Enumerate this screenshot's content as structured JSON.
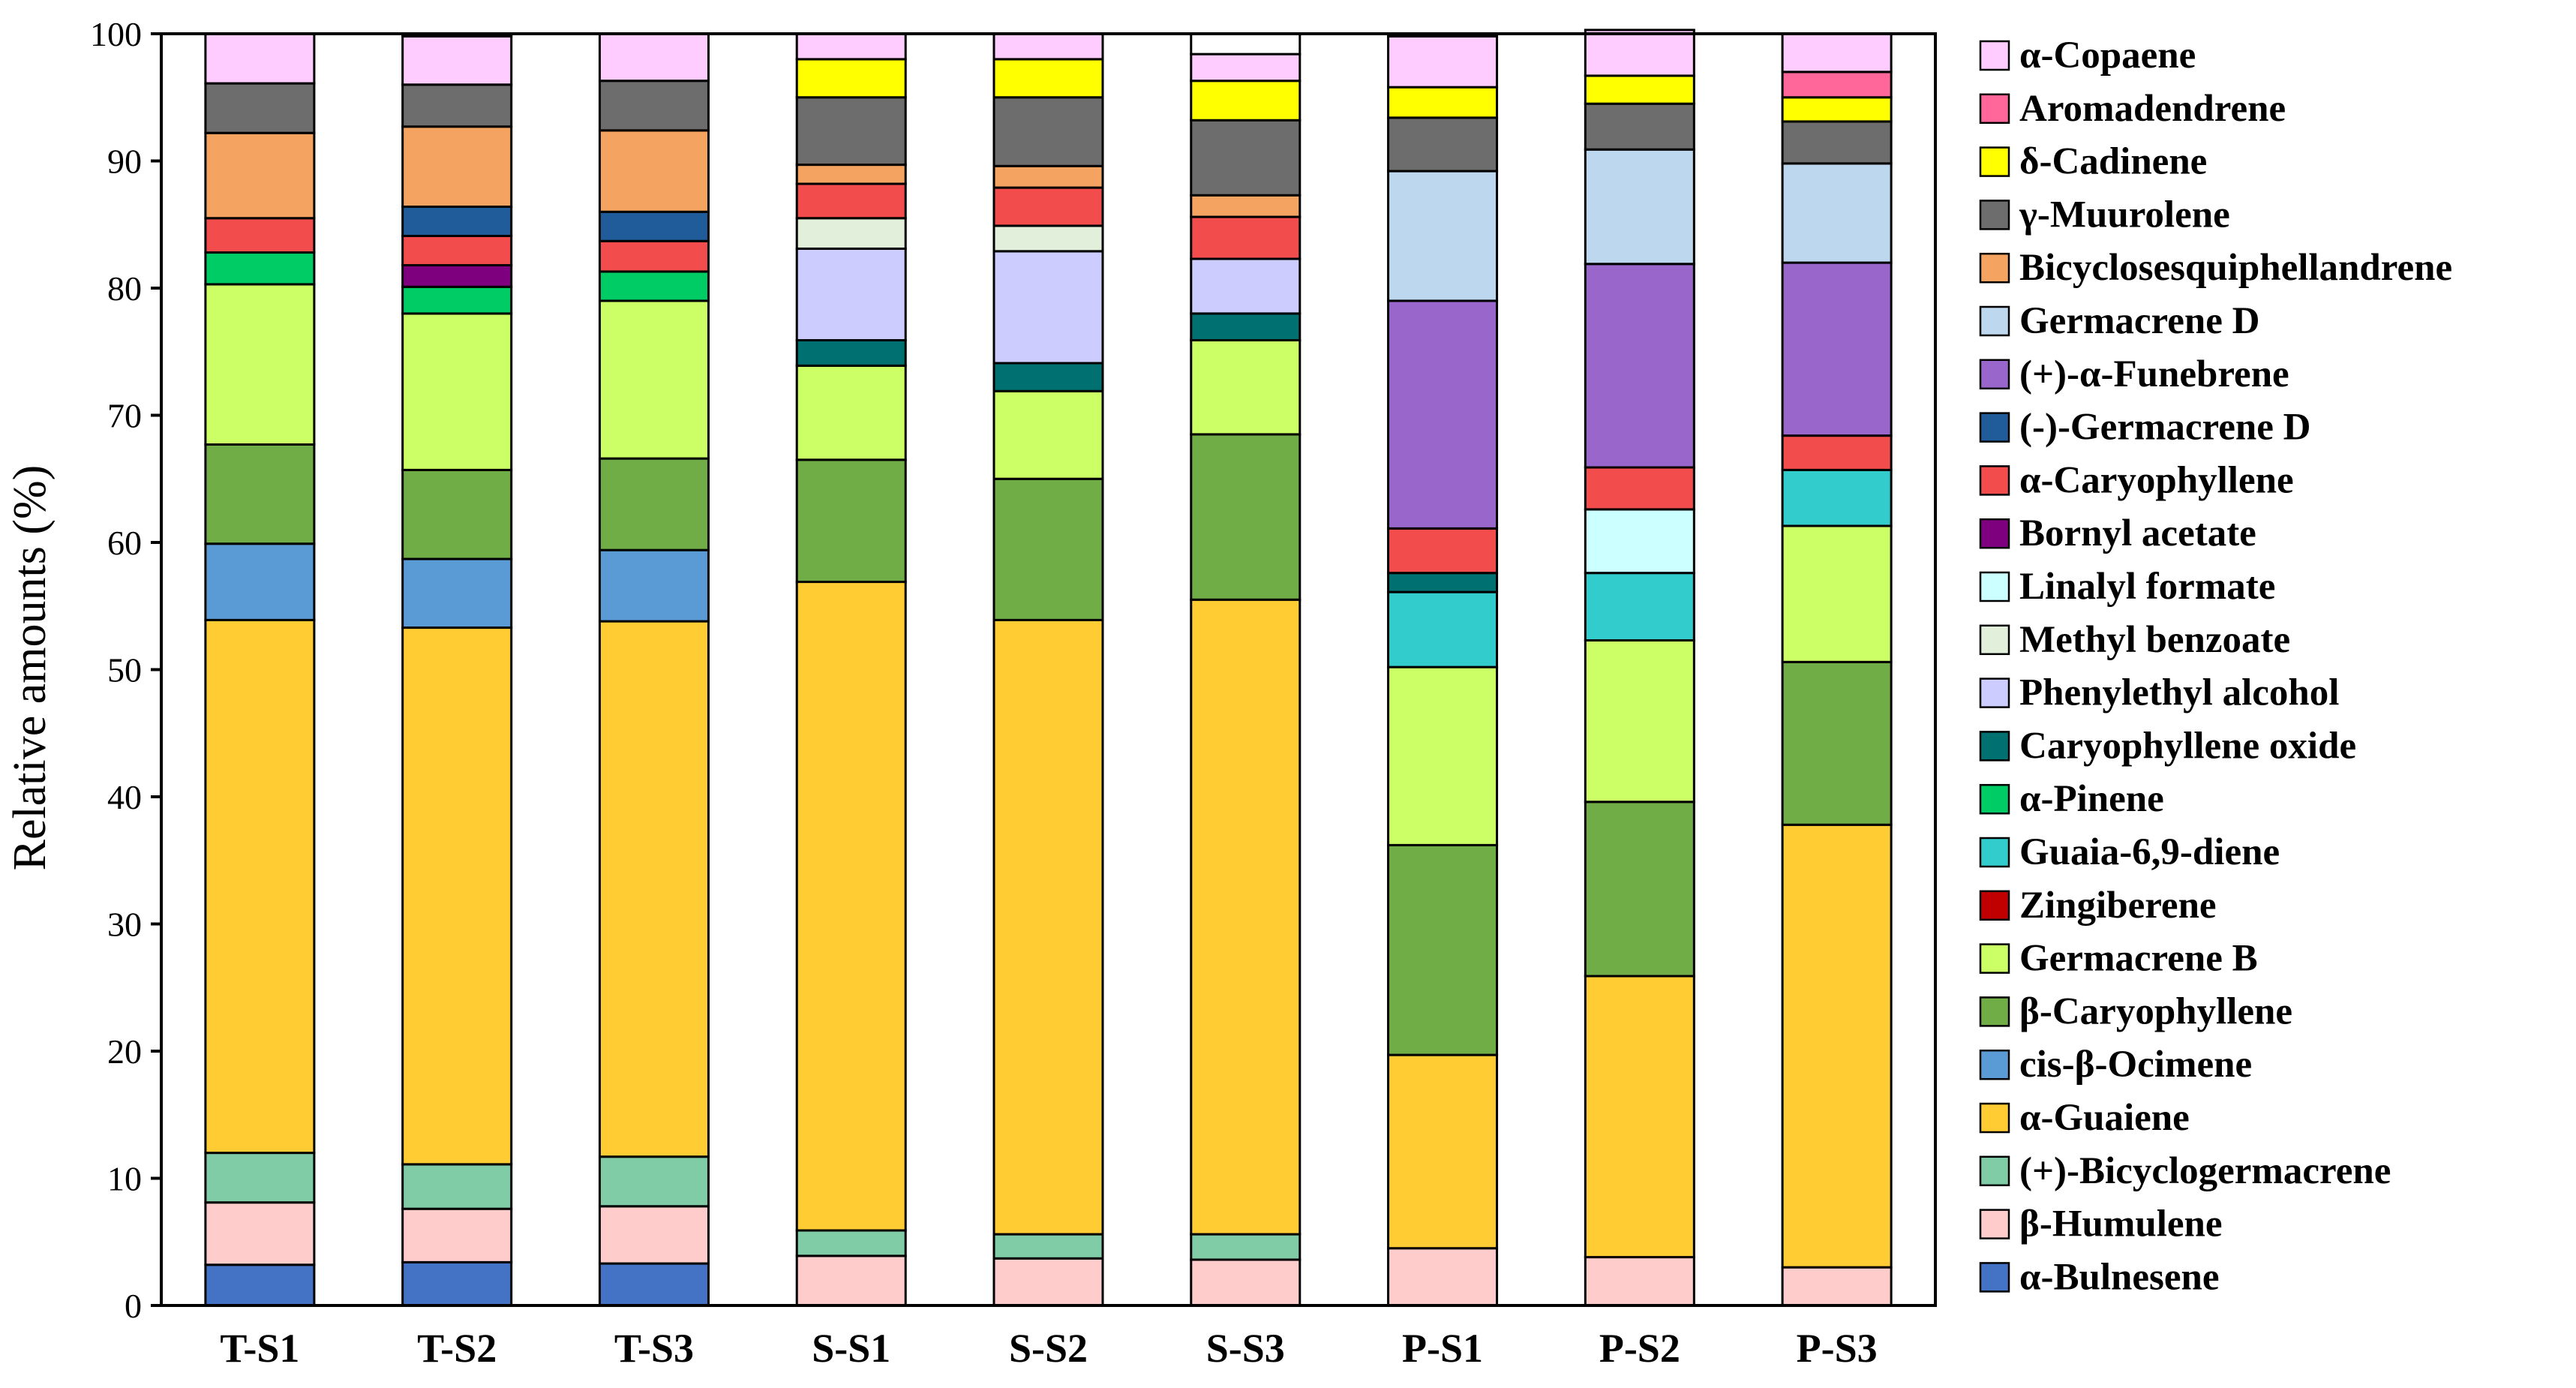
{
  "chart_data": {
    "type": "bar",
    "stacked": true,
    "title": "",
    "xlabel": "",
    "ylabel": "Relative amounts (%)",
    "ylim": [
      0,
      100
    ],
    "yticks": [
      0,
      10,
      20,
      30,
      40,
      50,
      60,
      70,
      80,
      90,
      100
    ],
    "categories": [
      "T-S1",
      "T-S2",
      "T-S3",
      "S-S1",
      "S-S2",
      "S-S3",
      "P-S1",
      "P-S2",
      "P-S3"
    ],
    "legend_position": "right",
    "series": [
      {
        "name": "α-Bulnesene",
        "color": "#4472C4",
        "values": [
          3.2,
          3.4,
          3.3,
          0,
          0,
          0,
          0,
          0,
          0
        ]
      },
      {
        "name": "β-Humulene",
        "color": "#FFCCCC",
        "values": [
          4.9,
          4.2,
          4.5,
          3.9,
          3.7,
          3.6,
          4.5,
          3.8,
          3.0
        ]
      },
      {
        "name": "(+)-Bicyclogermacrene",
        "color": "#7FCCA6",
        "values": [
          3.9,
          3.5,
          3.9,
          2.0,
          1.9,
          2.0,
          0,
          0,
          0
        ]
      },
      {
        "name": "α-Guaiene",
        "color": "#FFCC33",
        "values": [
          41.9,
          42.2,
          42.1,
          51.0,
          48.3,
          49.9,
          15.2,
          22.1,
          34.8
        ]
      },
      {
        "name": "cis-β-Ocimene",
        "color": "#5B9BD5",
        "values": [
          6.0,
          5.4,
          5.6,
          0,
          0,
          0,
          0,
          0,
          0
        ]
      },
      {
        "name": "β-Caryophyllene",
        "color": "#70AD47",
        "values": [
          7.8,
          7.0,
          7.2,
          9.6,
          11.1,
          13.0,
          16.5,
          13.7,
          12.8
        ]
      },
      {
        "name": "Germacrene B",
        "color": "#CCFF66",
        "values": [
          12.6,
          12.3,
          12.4,
          7.4,
          6.9,
          7.4,
          14.0,
          12.7,
          10.7
        ]
      },
      {
        "name": "Zingiberene",
        "color": "#C00000",
        "values": [
          0,
          0,
          0,
          0,
          0,
          0,
          0,
          0,
          0
        ]
      },
      {
        "name": "Guaia-6,9-diene",
        "color": "#33CCCC",
        "values": [
          0,
          0,
          0,
          0,
          0,
          0,
          5.9,
          5.3,
          4.4
        ]
      },
      {
        "name": "α-Pinene",
        "color": "#00CC66",
        "values": [
          2.5,
          2.1,
          2.3,
          0,
          0,
          0,
          0,
          0,
          0
        ]
      },
      {
        "name": "Caryophyllene oxide",
        "color": "#007070",
        "values": [
          0,
          0,
          0,
          2.0,
          2.2,
          2.1,
          1.5,
          0,
          0
        ]
      },
      {
        "name": "Phenylethyl alcohol",
        "color": "#CCCCFF",
        "values": [
          0,
          0,
          0,
          7.2,
          8.8,
          4.3,
          0,
          0,
          0
        ]
      },
      {
        "name": "Methyl benzoate",
        "color": "#E2EFDA",
        "values": [
          0,
          0,
          0,
          2.4,
          2.0,
          0,
          0,
          0,
          0
        ]
      },
      {
        "name": "Linalyl formate",
        "color": "#CCFFFF",
        "values": [
          0,
          0,
          0,
          0,
          0,
          0,
          0,
          5.0,
          0
        ]
      },
      {
        "name": "Bornyl acetate",
        "color": "#7F007F",
        "values": [
          0,
          1.7,
          0,
          0,
          0,
          0,
          0,
          0,
          0
        ]
      },
      {
        "name": "α-Caryophyllene",
        "color": "#F24C4C",
        "values": [
          2.7,
          2.3,
          2.4,
          2.7,
          3.0,
          3.3,
          3.5,
          3.3,
          2.7
        ]
      },
      {
        "name": "(-)-Germacrene D",
        "color": "#1F5C99",
        "values": [
          0,
          2.3,
          2.3,
          0,
          0,
          0,
          0,
          0,
          0
        ]
      },
      {
        "name": "(+)-α-Funebrene",
        "color": "#9966CC",
        "values": [
          0,
          0,
          0,
          0,
          0,
          0,
          17.9,
          16.0,
          13.6
        ]
      },
      {
        "name": "Germacrene D",
        "color": "#BDD7EE",
        "values": [
          0,
          0,
          0,
          0,
          0,
          0,
          10.2,
          9.0,
          7.8
        ]
      },
      {
        "name": "Bicyclosesquiphellandrene",
        "color": "#F4A460",
        "values": [
          6.7,
          6.3,
          6.4,
          1.5,
          1.7,
          1.7,
          0,
          0,
          0
        ]
      },
      {
        "name": "γ-Muurolene",
        "color": "#6D6D6D",
        "values": [
          3.9,
          3.3,
          3.9,
          5.3,
          5.4,
          5.9,
          4.2,
          3.6,
          3.3
        ]
      },
      {
        "name": "δ-Cadinene",
        "color": "#FFFF00",
        "values": [
          0,
          0,
          0,
          3.0,
          3.0,
          3.1,
          2.4,
          2.2,
          1.9
        ]
      },
      {
        "name": "Aromadendrene",
        "color": "#FF6699",
        "values": [
          0,
          0,
          0,
          0,
          0,
          0,
          0,
          0,
          2.0
        ]
      },
      {
        "name": "α-Copaene",
        "color": "#FFCCFF",
        "values": [
          3.9,
          3.8,
          3.7,
          2.0,
          2.0,
          2.1,
          4.0,
          3.6,
          3.0
        ]
      }
    ]
  }
}
